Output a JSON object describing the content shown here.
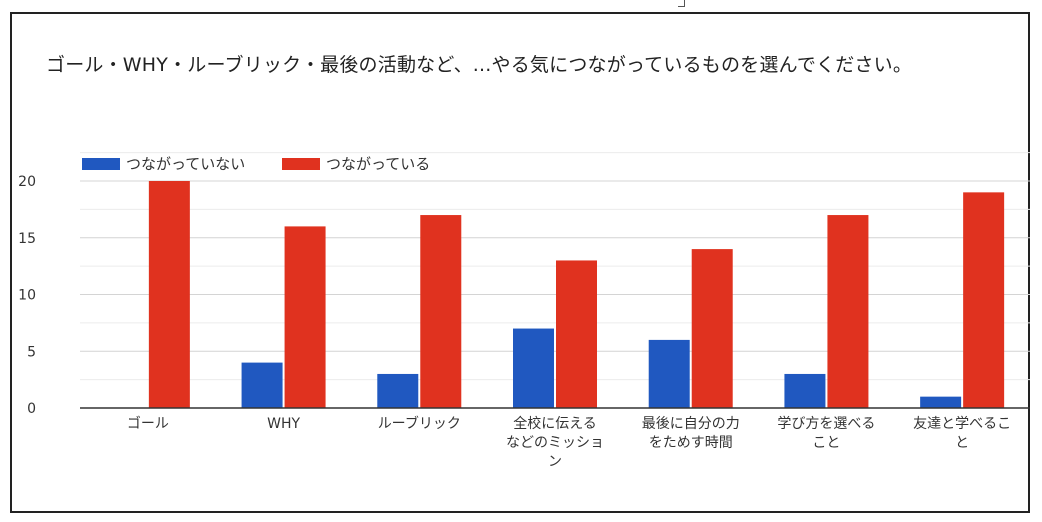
{
  "chart_data": {
    "type": "bar",
    "title": "ゴール・WHY・ルーブリック・最後の活動など、...やる気につながっているものを選んでください。",
    "categories": [
      [
        "ゴール"
      ],
      [
        "WHY"
      ],
      [
        "ルーブリック"
      ],
      [
        "全校に伝える",
        "などのミッショ",
        "ン"
      ],
      [
        "最後に自分の力",
        "をためす時間"
      ],
      [
        "学び方を選べる",
        "こと"
      ],
      [
        "友達と学べるこ",
        "と"
      ]
    ],
    "series": [
      {
        "name": "つながっていない",
        "color": "#2058c0",
        "values": [
          0,
          4,
          3,
          7,
          6,
          3,
          1
        ]
      },
      {
        "name": "つながっている",
        "color": "#e0321f",
        "values": [
          20,
          16,
          17,
          13,
          14,
          17,
          19
        ]
      }
    ],
    "yticks": [
      0,
      5,
      10,
      15,
      20
    ],
    "ylim": [
      0,
      20
    ],
    "grid": true,
    "legend": "top-left"
  }
}
